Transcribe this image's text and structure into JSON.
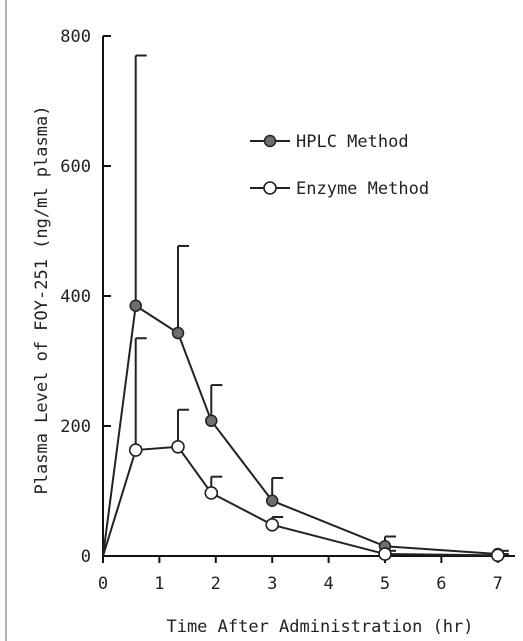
{
  "chart_data": {
    "type": "line",
    "title": "",
    "xlabel": "Time After Administration (hr)",
    "ylabel": "Plasma Level of FOY-251 (ng/ml plasma)",
    "xlim": [
      0,
      7.5
    ],
    "ylim": [
      0,
      800
    ],
    "x_ticks": [
      0,
      1,
      2,
      3,
      4,
      5,
      6,
      7
    ],
    "y_ticks": [
      0,
      200,
      400,
      600,
      800
    ],
    "grid": false,
    "legend_position": "top-right",
    "series": [
      {
        "name": "HPLC Method",
        "marker": "filled-circle",
        "x": [
          0,
          0.58,
          1.33,
          1.92,
          3.0,
          5.0,
          7.0
        ],
        "y": [
          0,
          385,
          343,
          208,
          85,
          15,
          3
        ],
        "error_upper": [
          0,
          770,
          477,
          263,
          120,
          30,
          8
        ]
      },
      {
        "name": "Enzyme Method",
        "marker": "open-circle",
        "x": [
          0,
          0.58,
          1.33,
          1.92,
          3.0,
          5.0,
          7.0
        ],
        "y": [
          0,
          163,
          168,
          97,
          48,
          3,
          1
        ],
        "error_upper": [
          0,
          335,
          225,
          122,
          60,
          8,
          3
        ]
      }
    ]
  }
}
